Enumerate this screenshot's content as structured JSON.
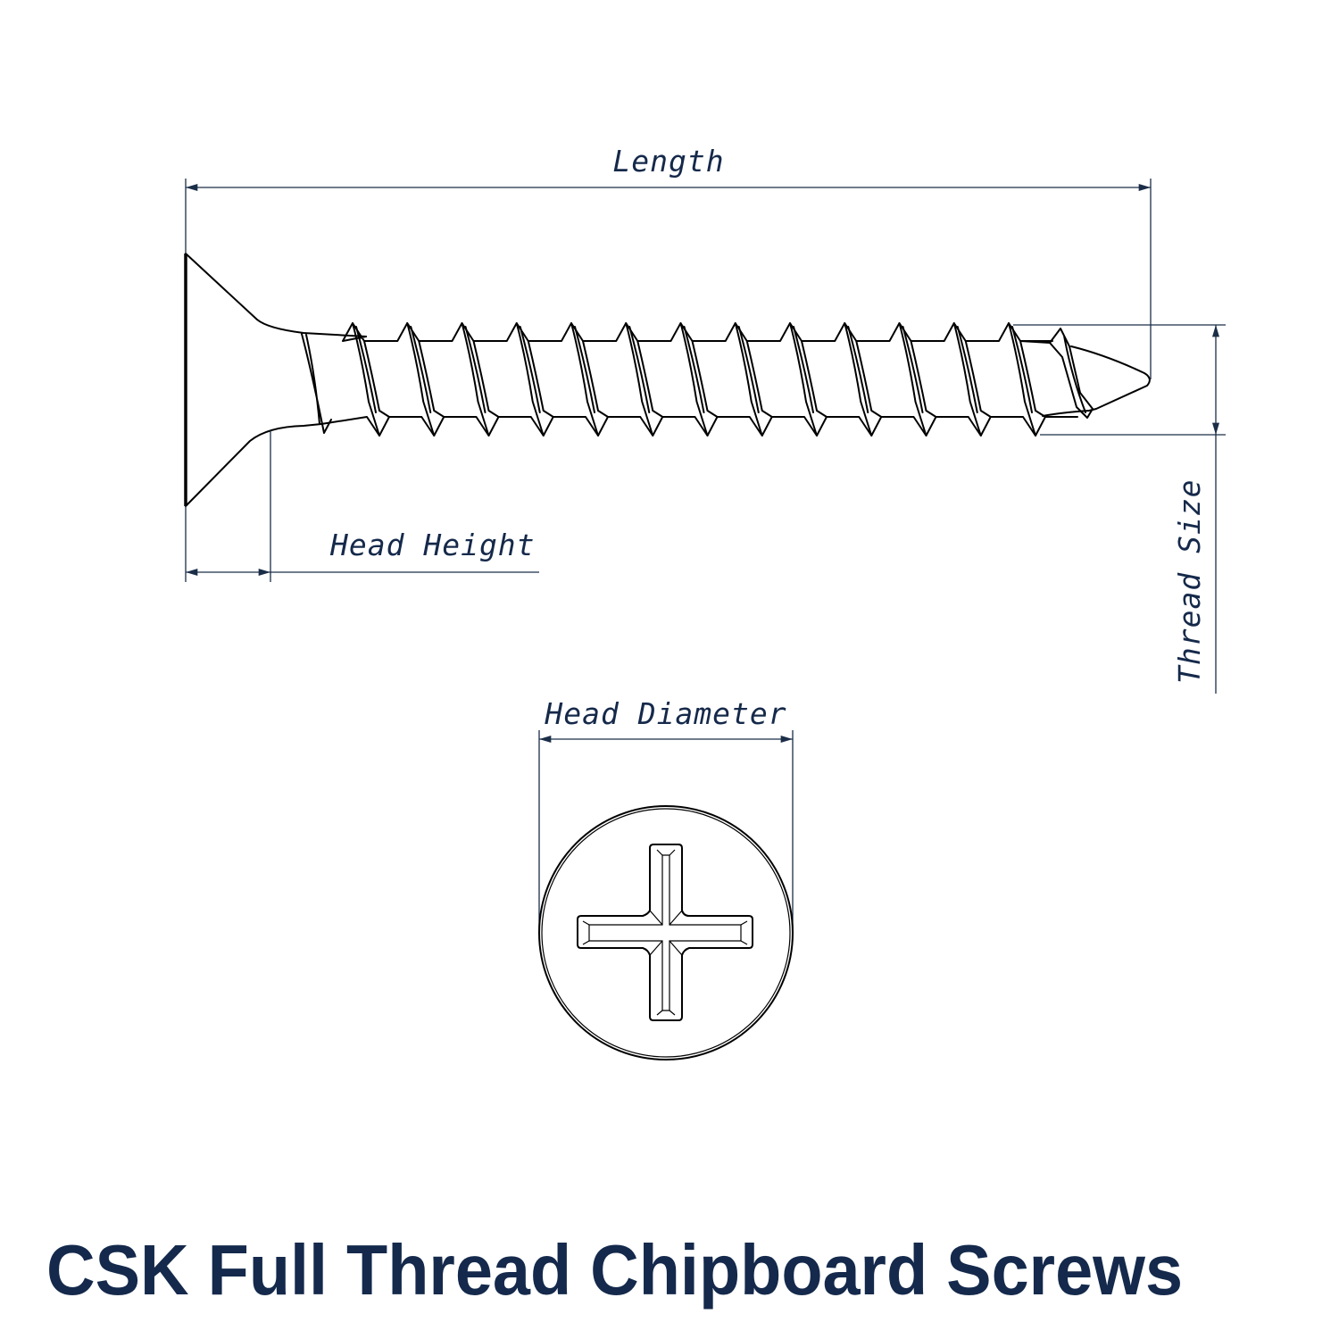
{
  "title": "CSK Full Thread Chipboard Screws",
  "dimensions": {
    "length": "Length",
    "head_height": "Head Height",
    "thread_size": "Thread Size",
    "head_diameter": "Head Diameter"
  },
  "colors": {
    "dimension_lines": "#1b2e48",
    "title": "#14294b",
    "part_outline": "#000000"
  },
  "drive_type": "phillips-cross"
}
